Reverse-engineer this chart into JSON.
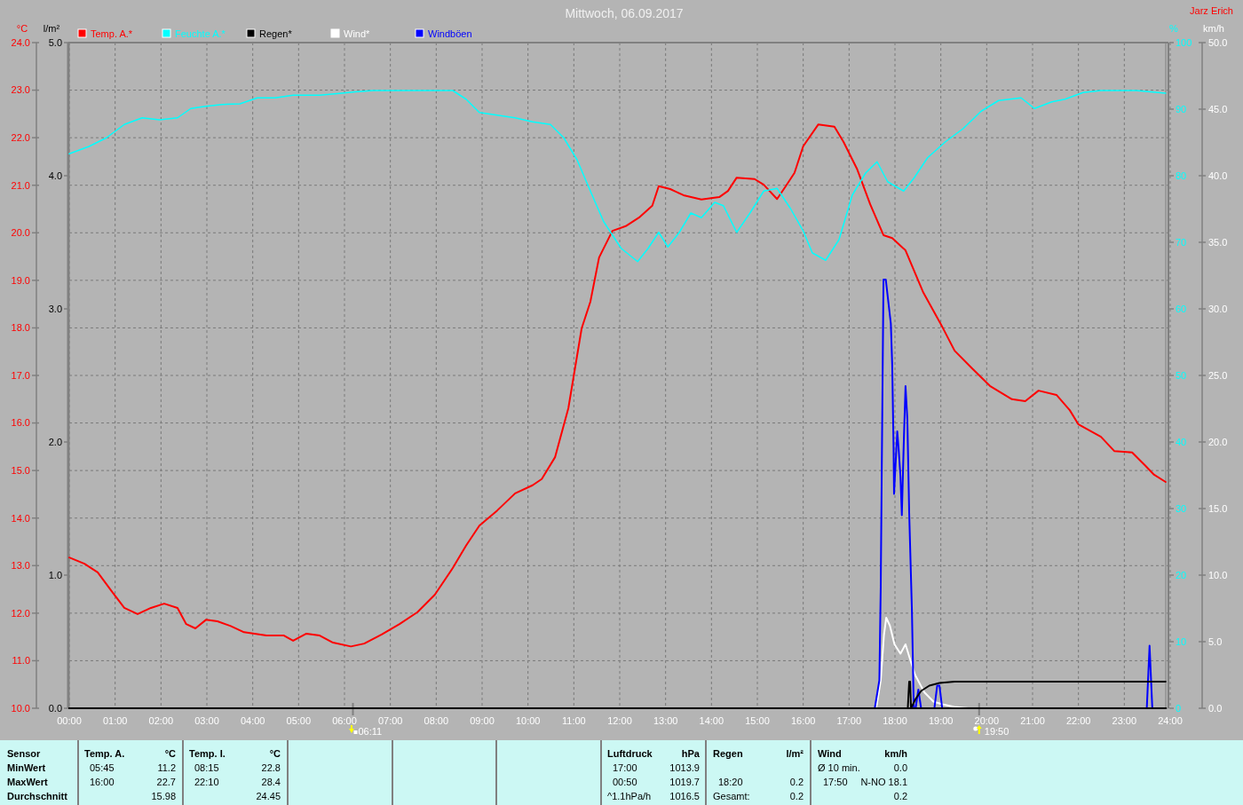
{
  "chart_data": [
    {
      "type": "line",
      "title": "Mittwoch, 06.09.2017",
      "annotations": [
        "Jarz Erich",
        "06:11",
        "19:50"
      ],
      "xlim": [
        0,
        24
      ],
      "xticks": [
        {
          "value": 0,
          "label": "00:00"
        },
        {
          "value": 1,
          "label": "01:00"
        },
        {
          "value": 2,
          "label": "02:00"
        },
        {
          "value": 3,
          "label": "03:00"
        },
        {
          "value": 4,
          "label": "04:00"
        },
        {
          "value": 5,
          "label": "05:00"
        },
        {
          "value": 6,
          "label": "06:00"
        },
        {
          "value": 7,
          "label": "07:00"
        },
        {
          "value": 8,
          "label": "08:00"
        },
        {
          "value": 9,
          "label": "09:00"
        },
        {
          "value": 10,
          "label": "10:00"
        },
        {
          "value": 11,
          "label": "11:00"
        },
        {
          "value": 12,
          "label": "12:00"
        },
        {
          "value": 13,
          "label": "13:00"
        },
        {
          "value": 14,
          "label": "14:00"
        },
        {
          "value": 15,
          "label": "15:00"
        },
        {
          "value": 16,
          "label": "16:00"
        },
        {
          "value": 17,
          "label": "17:00"
        },
        {
          "value": 18,
          "label": "18:00"
        },
        {
          "value": 19,
          "label": "19:00"
        },
        {
          "value": 20,
          "label": "20:00"
        },
        {
          "value": 21,
          "label": "21:00"
        },
        {
          "value": 22,
          "label": "22:00"
        },
        {
          "value": 23,
          "label": "23:00"
        },
        {
          "value": 24,
          "label": "24:00"
        }
      ],
      "ylabel": "°C",
      "ylim": [
        10,
        24
      ],
      "yticks": [
        {
          "value": 10,
          "label": "10.0"
        },
        {
          "value": 11,
          "label": "11.0"
        },
        {
          "value": 12,
          "label": "12.0"
        },
        {
          "value": 13,
          "label": "13.0"
        },
        {
          "value": 14,
          "label": "14.0"
        },
        {
          "value": 15,
          "label": "15.0"
        },
        {
          "value": 16,
          "label": "16.0"
        },
        {
          "value": 17,
          "label": "17.0"
        },
        {
          "value": 18,
          "label": "18.0"
        },
        {
          "value": 19,
          "label": "19.0"
        },
        {
          "value": 20,
          "label": "20.0"
        },
        {
          "value": 21,
          "label": "21.0"
        },
        {
          "value": 22,
          "label": "22.0"
        },
        {
          "value": 23,
          "label": "23.0"
        },
        {
          "value": 24,
          "label": "24.0"
        }
      ],
      "y2label": "%",
      "y2lim": [
        0,
        100
      ],
      "y2ticks": [
        0,
        10,
        20,
        30,
        40,
        50,
        60,
        70,
        80,
        90,
        100
      ],
      "y3label": "km/h",
      "y3lim": [
        0,
        50
      ],
      "y3ticks": [
        {
          "value": 0,
          "label": "0.0"
        },
        {
          "value": 5,
          "label": "5.0"
        },
        {
          "value": 10,
          "label": "10.0"
        },
        {
          "value": 15,
          "label": "15.0"
        },
        {
          "value": 20,
          "label": "20.0"
        },
        {
          "value": 25,
          "label": "25.0"
        },
        {
          "value": 30,
          "label": "30.0"
        },
        {
          "value": 35,
          "label": "35.0"
        },
        {
          "value": 40,
          "label": "40.0"
        },
        {
          "value": 45,
          "label": "45.0"
        },
        {
          "value": 50,
          "label": "50.0"
        }
      ],
      "grid": true,
      "legend": "top",
      "series": [
        {
          "name": "Temp. A.*",
          "color": "#ff0000",
          "x": [
            0,
            0.33,
            0.62,
            0.91,
            1.2,
            1.49,
            1.78,
            2.07,
            2.36,
            2.55,
            2.75,
            2.98,
            3.23,
            3.52,
            3.81,
            4.3,
            4.68,
            4.88,
            5.17,
            5.46,
            5.75,
            6.14,
            6.43,
            6.81,
            7.2,
            7.59,
            7.97,
            8.36,
            8.65,
            8.94,
            9.33,
            9.72,
            10.1,
            10.3,
            10.59,
            10.88,
            11.17,
            11.36,
            11.55,
            11.84,
            12.13,
            12.42,
            12.71,
            12.85,
            13.1,
            13.39,
            13.78,
            14.17,
            14.36,
            14.55,
            14.94,
            15.14,
            15.43,
            15.62,
            15.81,
            16.0,
            16.33,
            16.68,
            16.88,
            17.17,
            17.46,
            17.75,
            17.94,
            18.23,
            18.62,
            19.0,
            19.3,
            19.68,
            20.07,
            20.55,
            20.84,
            21.13,
            21.52,
            21.81,
            22.0,
            22.49,
            22.78,
            23.17,
            23.46,
            23.65,
            23.9
          ],
          "values": [
            13.17,
            13.04,
            12.86,
            12.48,
            12.11,
            11.98,
            12.11,
            12.2,
            12.11,
            11.77,
            11.68,
            11.86,
            11.83,
            11.73,
            11.6,
            11.53,
            11.53,
            11.42,
            11.57,
            11.53,
            11.38,
            11.3,
            11.36,
            11.55,
            11.77,
            12.02,
            12.39,
            12.95,
            13.42,
            13.84,
            14.16,
            14.52,
            14.69,
            14.82,
            15.28,
            16.31,
            17.99,
            18.55,
            19.48,
            20.04,
            20.14,
            20.32,
            20.57,
            20.98,
            20.92,
            20.79,
            20.7,
            20.75,
            20.88,
            21.16,
            21.13,
            21.01,
            20.71,
            20.98,
            21.26,
            21.82,
            22.28,
            22.23,
            21.91,
            21.35,
            20.6,
            19.95,
            19.89,
            19.63,
            18.74,
            18.08,
            17.52,
            17.15,
            16.78,
            16.5,
            16.46,
            16.68,
            16.59,
            16.27,
            15.97,
            15.71,
            15.41,
            15.38,
            15.1,
            14.91,
            14.76
          ]
        },
        {
          "name": "Feuchte A.*",
          "color": "#00ffff",
          "axis": "y2",
          "x": [
            0,
            0.43,
            0.81,
            1.2,
            1.59,
            1.97,
            2.36,
            2.65,
            2.94,
            3.33,
            3.72,
            4.1,
            4.49,
            4.88,
            5.46,
            5.94,
            6.23,
            6.62,
            7.5,
            8.36,
            8.65,
            8.94,
            9.33,
            9.72,
            10.1,
            10.49,
            10.78,
            11.07,
            11.36,
            11.65,
            12.03,
            12.39,
            12.62,
            12.85,
            13.05,
            13.3,
            13.55,
            13.78,
            14.07,
            14.26,
            14.55,
            14.84,
            15.14,
            15.43,
            15.72,
            16.0,
            16.2,
            16.49,
            16.78,
            17.07,
            17.36,
            17.61,
            17.84,
            18.19,
            18.42,
            18.71,
            19.1,
            19.49,
            19.88,
            20.26,
            20.75,
            21.04,
            21.42,
            21.71,
            22.1,
            22.49,
            23.26,
            23.9
          ],
          "values": [
            83.3,
            84.4,
            85.7,
            87.7,
            88.7,
            88.4,
            88.7,
            90.1,
            90.4,
            90.7,
            90.8,
            91.7,
            91.7,
            92.1,
            92.1,
            92.4,
            92.6,
            92.8,
            92.8,
            92.8,
            91.5,
            89.5,
            89.1,
            88.7,
            88.1,
            87.7,
            85.7,
            82.4,
            77.7,
            73.1,
            69.1,
            67.1,
            69.1,
            71.5,
            69.3,
            71.5,
            74.4,
            73.7,
            76.0,
            75.5,
            71.5,
            74.4,
            77.7,
            78.1,
            75.1,
            71.7,
            68.4,
            67.3,
            70.4,
            77.1,
            80.4,
            82.1,
            79.1,
            77.7,
            79.7,
            82.7,
            85.1,
            87.1,
            89.7,
            91.3,
            91.7,
            90.1,
            91.1,
            91.5,
            92.5,
            92.8,
            92.8,
            92.4
          ]
        },
        {
          "name": "Wind*",
          "color": "#ffffff",
          "axis": "y3",
          "x": [
            17.59,
            17.69,
            17.76,
            17.81,
            17.89,
            17.99,
            18.12,
            18.23,
            18.31,
            18.44,
            18.64,
            18.84,
            19.03,
            19.3,
            19.6
          ],
          "values": [
            0,
            2.1,
            5.5,
            6.8,
            6.2,
            4.8,
            4.1,
            4.8,
            3.9,
            2.5,
            1.2,
            0.5,
            0.3,
            0.1,
            0
          ]
        },
        {
          "name": "Windböen",
          "color": "#0000ff",
          "axis": "y3",
          "x": [
            17.56,
            17.66,
            17.69,
            17.71,
            17.73,
            17.75,
            17.8,
            17.91,
            17.94,
            17.97,
            17.98,
            18.05,
            18.08,
            18.12,
            18.15,
            18.19,
            18.23,
            18.27,
            18.31,
            18.37,
            18.41,
            18.43,
            18.45,
            18.51,
            18.57,
            18.7,
            18.86,
            18.92,
            18.97,
            19.03,
            20,
            23.49,
            23.55,
            23.61
          ],
          "values": [
            0,
            2.1,
            9.1,
            17.0,
            24.6,
            32.2,
            32.2,
            28.9,
            25.8,
            19.5,
            16.1,
            20.8,
            19.5,
            17.4,
            14.5,
            19.7,
            24.2,
            21.7,
            14.7,
            7.3,
            0,
            null,
            0,
            1.4,
            0,
            null,
            0,
            1.7,
            1.7,
            0,
            null,
            0,
            4.7,
            0
          ]
        }
      ]
    },
    {
      "type": "line",
      "ylabel": "l/m²",
      "xlim": [
        0,
        24
      ],
      "ylim": [
        0,
        5
      ],
      "yticks": [
        {
          "value": 0,
          "label": "0.0"
        },
        {
          "value": 1,
          "label": "1.0"
        },
        {
          "value": 2,
          "label": "2.0"
        },
        {
          "value": 3,
          "label": "3.0"
        },
        {
          "value": 4,
          "label": "4.0"
        },
        {
          "value": 5,
          "label": "5.0"
        }
      ],
      "tick_labels": "y",
      "legend": "top",
      "series": [
        {
          "name": "Regen*",
          "color": "#000000",
          "x": [
            18.28,
            18.31,
            18.33,
            18.35,
            18.45,
            18.57,
            18.75,
            18.97,
            19.3,
            19.6,
            23.9
          ],
          "values": [
            0,
            0.2,
            0.2,
            0,
            0.07,
            0.13,
            0.17,
            0.19,
            0.2,
            0.2,
            0.2
          ]
        }
      ]
    },
    {
      "type": "other",
      "annotations": [
        "Sensor",
        "MinWert",
        "MaxWert",
        "Durchschnitt",
        "Temp. A.",
        "°C",
        "05:45",
        "11.2",
        "16:00",
        "22.7",
        "15.98",
        "Temp. I.",
        "°C",
        "08:15",
        "22.8",
        "22:10",
        "28.4",
        "24.45",
        "Luftdruck",
        "hPa",
        "17:00",
        "1013.9",
        "00:50",
        "1019.7",
        "^1.1hPa/h",
        "1016.5",
        "Regen",
        "l/m²",
        "18:20",
        "0.2",
        "Gesamt:",
        "0.2",
        "Wind",
        "km/h",
        "Ø 10 min.",
        "0.0",
        "17:50",
        "N-NO 18.1",
        "0.2"
      ]
    }
  ]
}
